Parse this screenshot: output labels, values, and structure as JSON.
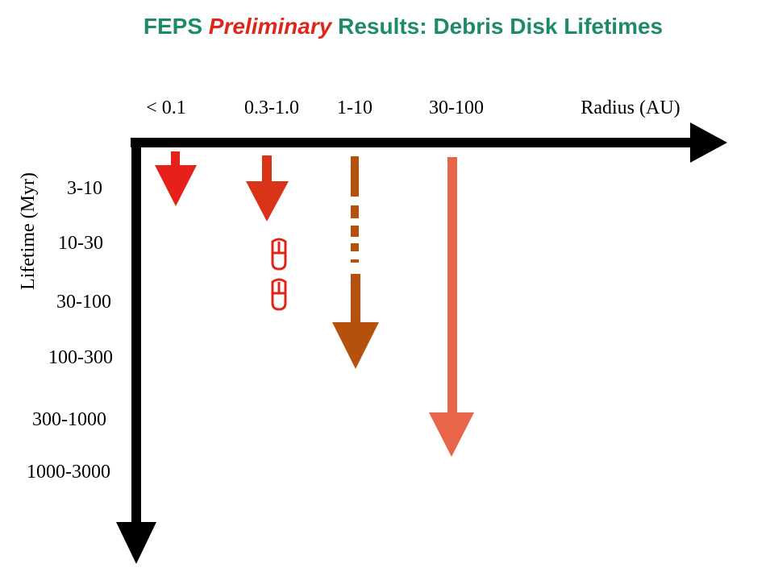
{
  "header": {
    "title_parts": [
      "FEPS",
      "Preliminary",
      "Results:  Debris Disk Lifetimes"
    ]
  },
  "x_axis": {
    "title": "Radius (AU)",
    "labels": [
      "< 0.1",
      "0.3-1.0",
      "1-10",
      "30-100"
    ]
  },
  "y_axis": {
    "title": "Lifetime (Myr)",
    "labels": [
      "3-10",
      "10-30",
      "30-100",
      "100-300",
      "300-1000",
      "1000-3000"
    ]
  }
}
